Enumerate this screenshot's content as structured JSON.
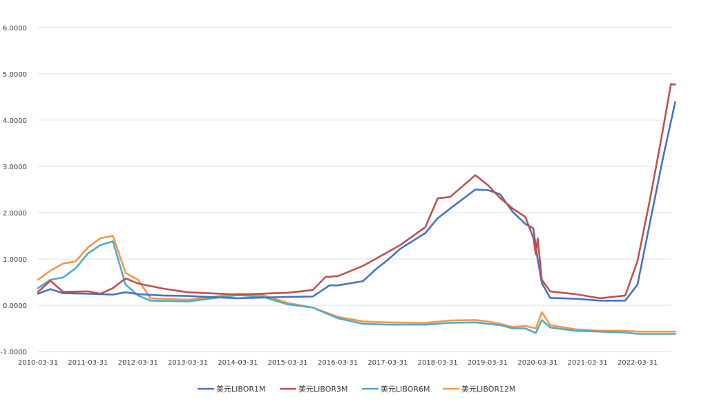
{
  "chart_data": {
    "type": "line",
    "title": "",
    "xlabel": "",
    "ylabel": "",
    "ylim": [
      -1,
      6
    ],
    "x_range": [
      "2010-03-31",
      "2022-12-31"
    ],
    "y_ticks": [
      "6.0000",
      "5.0000",
      "4.0000",
      "3.0000",
      "2.0000",
      "1.0000",
      "0.0000",
      "-1.0000"
    ],
    "x_ticks": [
      "2010-03-31",
      "2011-03-31",
      "2012-03-31",
      "2013-03-31",
      "2014-03-31",
      "2015-03-31",
      "2016-03-31",
      "2017-03-31",
      "2018-03-31",
      "2019-03-31",
      "2020-03-31",
      "2021-03-31",
      "2022-03-31"
    ],
    "grid": true,
    "legend_position": "bottom",
    "series": [
      {
        "name": "美元LIBOR1M",
        "color": "#4472c4",
        "points": [
          [
            "2010-03-31",
            0.25
          ],
          [
            "2010-06-30",
            0.35
          ],
          [
            "2010-09-30",
            0.26
          ],
          [
            "2011-03-31",
            0.25
          ],
          [
            "2011-09-30",
            0.23
          ],
          [
            "2011-12-31",
            0.28
          ],
          [
            "2012-03-31",
            0.24
          ],
          [
            "2012-09-30",
            0.21
          ],
          [
            "2013-03-31",
            0.2
          ],
          [
            "2014-03-31",
            0.15
          ],
          [
            "2015-03-31",
            0.18
          ],
          [
            "2015-09-30",
            0.19
          ],
          [
            "2016-01-31",
            0.43
          ],
          [
            "2016-03-31",
            0.43
          ],
          [
            "2016-09-30",
            0.52
          ],
          [
            "2016-12-31",
            0.77
          ],
          [
            "2017-03-31",
            0.98
          ],
          [
            "2017-06-30",
            1.22
          ],
          [
            "2017-12-31",
            1.56
          ],
          [
            "2018-03-31",
            1.88
          ],
          [
            "2018-06-30",
            2.09
          ],
          [
            "2018-12-31",
            2.5
          ],
          [
            "2019-03-31",
            2.49
          ],
          [
            "2019-06-30",
            2.4
          ],
          [
            "2019-09-30",
            2.02
          ],
          [
            "2019-12-31",
            1.76
          ],
          [
            "2020-02-28",
            1.66
          ],
          [
            "2020-03-31",
            0.99
          ],
          [
            "2020-04-30",
            0.48
          ],
          [
            "2020-06-30",
            0.16
          ],
          [
            "2020-12-31",
            0.14
          ],
          [
            "2021-06-30",
            0.1
          ],
          [
            "2021-12-31",
            0.1
          ],
          [
            "2022-03-31",
            0.45
          ],
          [
            "2022-06-30",
            1.79
          ],
          [
            "2022-09-30",
            3.14
          ],
          [
            "2022-12-31",
            4.39
          ]
        ]
      },
      {
        "name": "美元LIBOR3M",
        "color": "#c0504d",
        "points": [
          [
            "2010-03-31",
            0.29
          ],
          [
            "2010-06-30",
            0.53
          ],
          [
            "2010-09-30",
            0.29
          ],
          [
            "2011-03-31",
            0.3
          ],
          [
            "2011-06-30",
            0.25
          ],
          [
            "2011-09-30",
            0.37
          ],
          [
            "2011-12-31",
            0.58
          ],
          [
            "2012-03-31",
            0.47
          ],
          [
            "2012-09-30",
            0.36
          ],
          [
            "2013-03-31",
            0.28
          ],
          [
            "2014-03-31",
            0.23
          ],
          [
            "2015-03-31",
            0.27
          ],
          [
            "2015-09-30",
            0.33
          ],
          [
            "2015-12-31",
            0.61
          ],
          [
            "2016-03-31",
            0.63
          ],
          [
            "2016-09-30",
            0.85
          ],
          [
            "2016-12-31",
            1.0
          ],
          [
            "2017-03-31",
            1.15
          ],
          [
            "2017-06-30",
            1.3
          ],
          [
            "2017-12-31",
            1.69
          ],
          [
            "2018-03-31",
            2.31
          ],
          [
            "2018-06-30",
            2.34
          ],
          [
            "2018-12-31",
            2.81
          ],
          [
            "2019-03-31",
            2.6
          ],
          [
            "2019-06-30",
            2.32
          ],
          [
            "2019-09-30",
            2.09
          ],
          [
            "2019-12-31",
            1.91
          ],
          [
            "2020-02-28",
            1.46
          ],
          [
            "2020-03-17",
            1.1
          ],
          [
            "2020-03-31",
            1.45
          ],
          [
            "2020-04-30",
            0.55
          ],
          [
            "2020-06-30",
            0.3
          ],
          [
            "2020-12-31",
            0.24
          ],
          [
            "2021-06-30",
            0.15
          ],
          [
            "2021-12-31",
            0.21
          ],
          [
            "2022-03-31",
            0.96
          ],
          [
            "2022-06-30",
            2.29
          ],
          [
            "2022-09-30",
            3.75
          ],
          [
            "2022-11-30",
            4.78
          ],
          [
            "2022-12-31",
            4.77
          ]
        ]
      },
      {
        "name": "美元LIBOR6M",
        "color": "#4bacc6",
        "points": [
          [
            "2010-03-31",
            0.37
          ],
          [
            "2010-06-30",
            0.55
          ],
          [
            "2010-09-30",
            0.6
          ],
          [
            "2010-12-31",
            0.8
          ],
          [
            "2011-03-31",
            1.12
          ],
          [
            "2011-06-30",
            1.3
          ],
          [
            "2011-09-30",
            1.38
          ],
          [
            "2011-12-31",
            0.45
          ],
          [
            "2012-03-31",
            0.21
          ],
          [
            "2012-06-30",
            0.1
          ],
          [
            "2013-03-31",
            0.08
          ],
          [
            "2014-03-31",
            0.22
          ],
          [
            "2014-09-30",
            0.18
          ],
          [
            "2015-03-31",
            0.02
          ],
          [
            "2015-09-30",
            -0.05
          ],
          [
            "2016-03-31",
            -0.28
          ],
          [
            "2016-09-30",
            -0.4
          ],
          [
            "2017-03-31",
            -0.42
          ],
          [
            "2017-12-31",
            -0.42
          ],
          [
            "2018-06-30",
            -0.38
          ],
          [
            "2018-12-31",
            -0.37
          ],
          [
            "2019-03-31",
            -0.4
          ],
          [
            "2019-06-30",
            -0.43
          ],
          [
            "2019-09-30",
            -0.5
          ],
          [
            "2019-12-31",
            -0.5
          ],
          [
            "2020-03-17",
            -0.6
          ],
          [
            "2020-04-30",
            -0.32
          ],
          [
            "2020-06-30",
            -0.48
          ],
          [
            "2020-12-31",
            -0.55
          ],
          [
            "2021-06-30",
            -0.57
          ],
          [
            "2021-12-31",
            -0.59
          ],
          [
            "2022-03-31",
            -0.62
          ],
          [
            "2022-12-31",
            -0.62
          ]
        ]
      },
      {
        "name": "美元LIBOR12M",
        "color": "#f79646",
        "points": [
          [
            "2010-03-31",
            0.55
          ],
          [
            "2010-06-30",
            0.75
          ],
          [
            "2010-09-30",
            0.9
          ],
          [
            "2010-12-31",
            0.95
          ],
          [
            "2011-03-31",
            1.25
          ],
          [
            "2011-06-30",
            1.45
          ],
          [
            "2011-09-30",
            1.5
          ],
          [
            "2011-12-31",
            0.7
          ],
          [
            "2012-03-31",
            0.55
          ],
          [
            "2012-06-30",
            0.15
          ],
          [
            "2013-03-31",
            0.12
          ],
          [
            "2014-03-31",
            0.25
          ],
          [
            "2014-09-30",
            0.22
          ],
          [
            "2015-03-31",
            0.05
          ],
          [
            "2015-09-30",
            -0.05
          ],
          [
            "2016-03-31",
            -0.25
          ],
          [
            "2016-09-30",
            -0.35
          ],
          [
            "2017-03-31",
            -0.37
          ],
          [
            "2017-12-31",
            -0.38
          ],
          [
            "2018-06-30",
            -0.33
          ],
          [
            "2018-12-31",
            -0.32
          ],
          [
            "2019-03-31",
            -0.35
          ],
          [
            "2019-06-30",
            -0.4
          ],
          [
            "2019-09-30",
            -0.47
          ],
          [
            "2019-12-31",
            -0.45
          ],
          [
            "2020-03-17",
            -0.5
          ],
          [
            "2020-04-30",
            -0.15
          ],
          [
            "2020-06-30",
            -0.43
          ],
          [
            "2020-12-31",
            -0.52
          ],
          [
            "2021-06-30",
            -0.55
          ],
          [
            "2021-12-31",
            -0.55
          ],
          [
            "2022-03-31",
            -0.57
          ],
          [
            "2022-12-31",
            -0.57
          ]
        ]
      }
    ]
  }
}
